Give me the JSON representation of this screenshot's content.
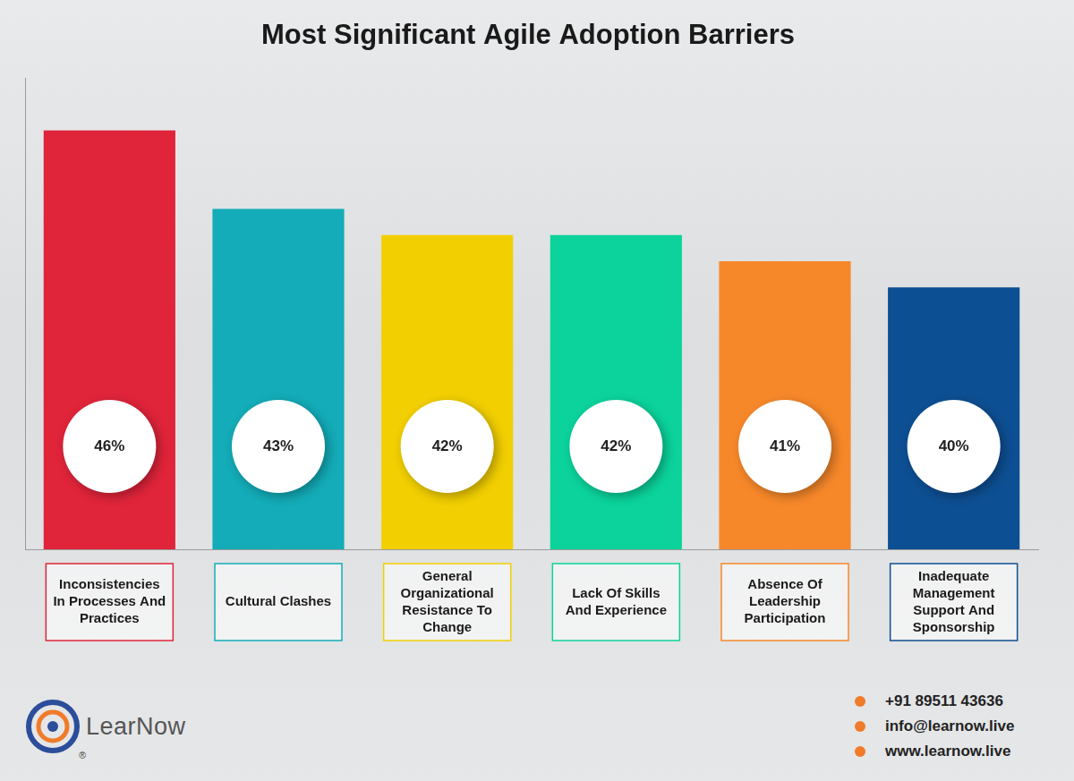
{
  "chart_data": {
    "type": "bar",
    "title": "Most Significant Agile Adoption Barriers",
    "categories": [
      "Inconsistencies In Processes And Practices",
      "Cultural Clashes",
      "General Organizational Resistance To Change",
      "Lack Of Skills And Experience",
      "Absence Of Leadership Participation",
      "Inadequate Management Support And Sponsorship"
    ],
    "values": [
      46,
      43,
      42,
      42,
      41,
      40
    ],
    "value_labels": [
      "46%",
      "43%",
      "42%",
      "42%",
      "41%",
      "40%"
    ],
    "colors": [
      "#e0243a",
      "#13acb8",
      "#f2cf00",
      "#0bd39b",
      "#f7882a",
      "#0d4f93"
    ],
    "ylim": [
      30,
      48
    ],
    "grid": false,
    "data_labels": true,
    "tick_labels": false
  },
  "footer": {
    "brand": "LearNow",
    "brand_mark": "®",
    "phone": "+91 89511 43636",
    "email": "info@learnow.live",
    "website": "www.learnow.live"
  }
}
